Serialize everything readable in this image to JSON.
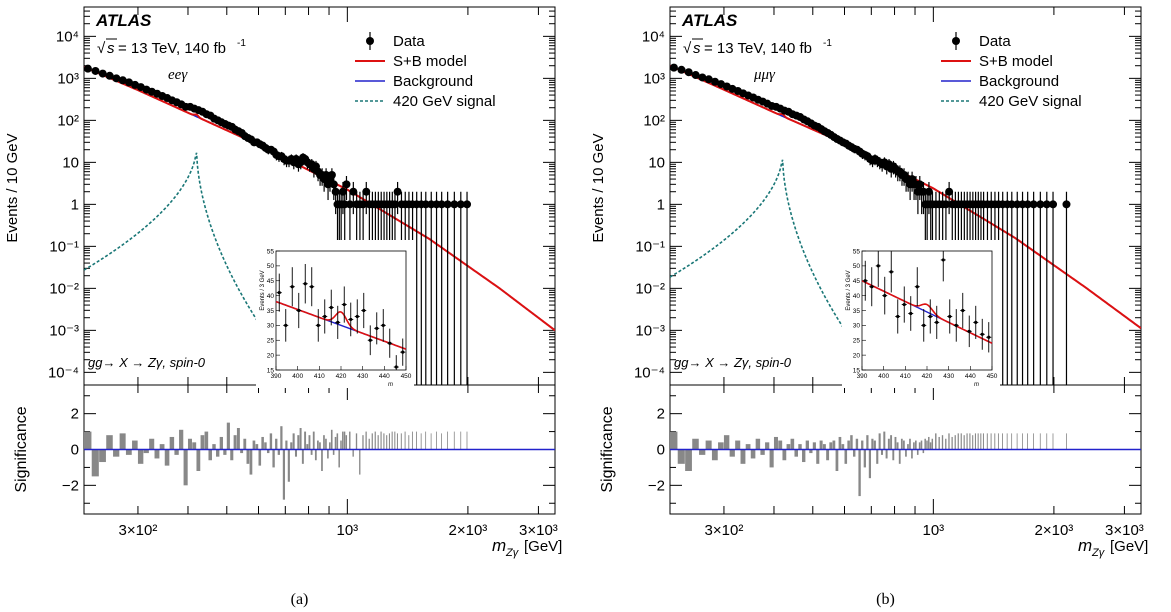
{
  "chart_data": [
    {
      "type": "scatter",
      "panel_label": "(a)",
      "experiment": "ATLAS",
      "energy_text": "= 13 TeV, 140 fb",
      "energy_sup": "-1",
      "sqrt_s": "s",
      "channel": "eeγ",
      "process_label": "gg→ X → Zγ, spin-0",
      "ylabel": "Events / 10 GeV",
      "xlabel": "[GeV]",
      "xlabel_symbol": "m",
      "xlabel_sub": "Zγ",
      "ratio_ylabel": "Significance",
      "xscale": "log",
      "yscale": "log",
      "xlim": [
        220,
        3300
      ],
      "ylim": [
        5e-05,
        50000
      ],
      "ratio_ylim": [
        -3.6,
        3.6
      ],
      "y_ticks": [
        "10⁻⁴",
        "10⁻³",
        "10⁻²",
        "10⁻¹",
        "1",
        "10",
        "10²",
        "10³",
        "10⁴"
      ],
      "ratio_ticks": [
        "2",
        "0",
        "−2"
      ],
      "x_ticks": [
        "3×10²",
        "10³",
        "2×10³",
        "3×10³"
      ],
      "legend": {
        "position": "top-right",
        "entries": [
          "Data",
          "S+B model",
          "Background",
          "420 GeV signal"
        ]
      },
      "colors": {
        "data": "#000000",
        "sb": "#dd1111",
        "bkg": "#2222cc",
        "signal": "#1a7777",
        "sig_bar": "#888888"
      },
      "background_model": {
        "log10_events_at": [
          [
            220,
            3.27
          ],
          [
            300,
            2.72
          ],
          [
            420,
            2.09
          ],
          [
            600,
            1.42
          ],
          [
            1000,
            0.35
          ],
          [
            1600,
            -0.82
          ],
          [
            2400,
            -2.0
          ],
          [
            3300,
            -3.0
          ]
        ]
      },
      "signal": {
        "mass": 420,
        "peak": 22,
        "width_log10_per_log10x": 0.17,
        "reach": 3.5,
        "floor": 0.00019
      },
      "data": {
        "x": [
          225,
          235,
          245,
          255,
          265,
          275,
          285,
          295,
          305,
          315,
          325,
          335,
          345,
          355,
          365,
          375,
          385,
          395,
          405,
          415,
          425,
          435,
          445,
          455,
          465,
          475,
          485,
          495,
          505,
          515,
          525,
          535,
          545,
          555,
          565,
          575,
          585,
          595,
          605,
          615,
          625,
          635,
          645,
          655,
          665,
          675,
          685,
          695,
          705,
          715,
          725,
          735,
          745,
          755,
          765,
          775,
          785,
          795,
          805,
          815,
          825,
          835,
          845,
          855,
          865,
          875,
          885,
          895,
          905,
          915,
          925,
          935,
          945,
          955,
          965,
          975,
          985,
          995,
          1015,
          1035,
          1055,
          1075,
          1095,
          1115,
          1135,
          1155,
          1175,
          1195,
          1215,
          1235,
          1255,
          1275,
          1295,
          1315,
          1335,
          1365,
          1395,
          1425,
          1455,
          1490,
          1530,
          1570,
          1620,
          1670,
          1720,
          1780,
          1850,
          1920,
          1990
        ],
        "y": [
          1700,
          1500,
          1300,
          1150,
          1000,
          900,
          800,
          700,
          620,
          540,
          480,
          430,
          380,
          340,
          300,
          270,
          240,
          210,
          210,
          190,
          175,
          160,
          140,
          130,
          110,
          100,
          90,
          82,
          75,
          70,
          60,
          55,
          50,
          42,
          38,
          35,
          30,
          30,
          27,
          25,
          22,
          20,
          20,
          18,
          15,
          14,
          14,
          12,
          11,
          11,
          12,
          10,
          12,
          9,
          10,
          13,
          12,
          10,
          9,
          9,
          7,
          8,
          6,
          5,
          5,
          4,
          5,
          3,
          4,
          5,
          3,
          2,
          1,
          1,
          1,
          2,
          1,
          3,
          1,
          2,
          1,
          1,
          1,
          2,
          1,
          1,
          1,
          1,
          1,
          1,
          1,
          1,
          1,
          1,
          2,
          1,
          1,
          1,
          1,
          1,
          1,
          1,
          1,
          1,
          1,
          1,
          1,
          1,
          1
        ]
      },
      "significance": [
        1.0,
        -1.5,
        -0.7,
        0.8,
        -0.4,
        0.9,
        -0.3,
        0.5,
        -0.8,
        -0.2,
        0.6,
        -0.5,
        0.3,
        -0.9,
        0.7,
        -0.3,
        1.1,
        -2.0,
        0.6,
        0.4,
        -1.2,
        0.8,
        1.0,
        -0.6,
        0.3,
        -0.4,
        0.7,
        -0.3,
        1.5,
        -0.6,
        0.8,
        1.2,
        -0.2,
        0.6,
        -0.8,
        -1.4,
        0.5,
        0.3,
        -0.9,
        0.7,
        0.4,
        -0.2,
        0.9,
        -1.0,
        0.6,
        -0.3,
        1.3,
        -2.8,
        0.5,
        -1.8,
        0.4,
        0.9,
        -0.4,
        0.8,
        1.2,
        -0.8,
        1.0,
        0.3,
        0.8,
        -0.3,
        1.0,
        -0.6,
        0.5,
        0.4,
        -1.2,
        0.8,
        0.6,
        -0.5,
        0.4,
        1.1,
        -0.3,
        0.7,
        0.9,
        -1.0,
        0.5,
        1.0,
        1.0,
        0.8,
        1.0,
        -0.4,
        0.9,
        -1.4,
        0.8,
        1.0,
        0.6,
        0.9,
        1.0,
        0.8,
        1.0,
        0.9,
        0.8,
        0.9,
        1.0,
        1.0,
        0.9,
        0.9,
        1.0,
        0.8,
        1.0,
        1.0,
        0.9,
        1.0,
        0.9,
        1.0,
        0.9,
        1.0,
        1.0,
        1.0,
        1.0
      ],
      "inset": {
        "ylabel": "Events / 3 GeV",
        "xlabel": "m",
        "xlim": [
          390,
          450
        ],
        "ylim": [
          15,
          55
        ],
        "x_ticks": [
          "390",
          "400",
          "410",
          "420",
          "430",
          "440",
          "450"
        ],
        "y_ticks": [
          "15",
          "20",
          "25",
          "30",
          "35",
          "40",
          "45",
          "50",
          "55"
        ],
        "bkg_line": [
          [
            390,
            38
          ],
          [
            450,
            22
          ]
        ],
        "sb_bump": {
          "mass": 420,
          "height": 4.5,
          "width": 3.5
        },
        "data": {
          "x": [
            391.5,
            394.5,
            397.5,
            400.5,
            403.5,
            406.5,
            409.5,
            412.5,
            415.5,
            418.5,
            421.5,
            424.5,
            427.5,
            430.5,
            433.5,
            436.5,
            439.5,
            442.5,
            445.5,
            448.5
          ],
          "y": [
            41,
            30,
            43,
            35,
            44,
            43,
            30,
            33,
            36,
            31,
            37,
            32,
            33,
            35,
            25,
            29,
            30,
            24,
            16,
            21
          ]
        }
      }
    },
    {
      "type": "scatter",
      "panel_label": "(b)",
      "experiment": "ATLAS",
      "energy_text": "= 13 TeV, 140 fb",
      "energy_sup": "-1",
      "sqrt_s": "s",
      "channel": "μμγ",
      "process_label": "gg→ X → Zγ, spin-0",
      "ylabel": "Events / 10 GeV",
      "xlabel": "[GeV]",
      "xlabel_symbol": "m",
      "xlabel_sub": "Zγ",
      "ratio_ylabel": "Significance",
      "xscale": "log",
      "yscale": "log",
      "xlim": [
        220,
        3300
      ],
      "ylim": [
        5e-05,
        50000
      ],
      "ratio_ylim": [
        -3.6,
        3.6
      ],
      "y_ticks": [
        "10⁻⁴",
        "10⁻³",
        "10⁻²",
        "10⁻¹",
        "1",
        "10",
        "10²",
        "10³",
        "10⁴"
      ],
      "ratio_ticks": [
        "2",
        "0",
        "−2"
      ],
      "x_ticks": [
        "3×10²",
        "10³",
        "2×10³",
        "3×10³"
      ],
      "legend": {
        "position": "top-right",
        "entries": [
          "Data",
          "S+B model",
          "Background",
          "420 GeV signal"
        ]
      },
      "colors": {
        "data": "#000000",
        "sb": "#dd1111",
        "bkg": "#2222cc",
        "signal": "#1a7777",
        "sig_bar": "#888888"
      },
      "background_model": {
        "log10_events_at": [
          [
            220,
            3.3
          ],
          [
            300,
            2.73
          ],
          [
            420,
            2.1
          ],
          [
            600,
            1.45
          ],
          [
            1000,
            0.38
          ],
          [
            1600,
            -0.8
          ],
          [
            2400,
            -1.98
          ],
          [
            3300,
            -2.95
          ]
        ]
      },
      "signal": {
        "mass": 420,
        "peak": 15,
        "width_log10_per_log10x": 0.17,
        "reach": 3.5,
        "floor": 0.00019
      },
      "data": {
        "x": [
          225,
          235,
          245,
          255,
          265,
          275,
          285,
          295,
          305,
          315,
          325,
          335,
          345,
          355,
          365,
          375,
          385,
          395,
          405,
          415,
          425,
          435,
          445,
          455,
          465,
          475,
          485,
          495,
          505,
          515,
          525,
          535,
          545,
          555,
          565,
          575,
          585,
          595,
          605,
          615,
          625,
          635,
          645,
          655,
          665,
          675,
          685,
          695,
          705,
          715,
          725,
          735,
          745,
          755,
          765,
          775,
          785,
          795,
          805,
          815,
          825,
          835,
          845,
          855,
          865,
          875,
          885,
          895,
          905,
          915,
          925,
          935,
          945,
          955,
          965,
          975,
          985,
          995,
          1015,
          1035,
          1055,
          1075,
          1095,
          1115,
          1135,
          1155,
          1175,
          1195,
          1215,
          1235,
          1255,
          1275,
          1295,
          1315,
          1335,
          1365,
          1395,
          1425,
          1455,
          1490,
          1530,
          1570,
          1620,
          1670,
          1720,
          1780,
          1850,
          1920,
          1990,
          2150
        ],
        "y": [
          1800,
          1600,
          1400,
          1200,
          1050,
          950,
          830,
          730,
          640,
          560,
          500,
          440,
          390,
          350,
          310,
          280,
          250,
          220,
          210,
          190,
          170,
          160,
          140,
          130,
          120,
          105,
          95,
          85,
          75,
          70,
          62,
          55,
          50,
          45,
          40,
          36,
          33,
          30,
          28,
          25,
          23,
          21,
          20,
          18,
          16,
          15,
          14,
          12,
          11,
          12,
          11,
          10,
          9,
          10,
          8,
          9,
          7,
          8,
          7,
          6,
          6,
          5,
          5,
          4,
          4,
          3,
          4,
          3,
          3,
          2,
          3,
          2,
          2,
          1,
          1,
          2,
          1,
          1,
          1,
          1,
          1,
          1,
          2,
          1,
          1,
          1,
          1,
          1,
          1,
          1,
          1,
          1,
          1,
          1,
          1,
          1,
          1,
          1,
          1,
          1,
          1,
          1,
          1,
          1,
          1,
          1,
          1,
          1,
          1,
          1
        ]
      },
      "significance": [
        1.0,
        -0.8,
        -1.2,
        0.6,
        -0.3,
        0.5,
        -0.6,
        0.4,
        0.8,
        -0.4,
        0.5,
        -0.8,
        0.3,
        -0.5,
        0.6,
        -0.3,
        0.4,
        -1.0,
        0.7,
        0.5,
        -0.6,
        0.3,
        0.6,
        -0.4,
        0.3,
        -0.7,
        0.5,
        -0.2,
        0.4,
        -0.8,
        0.5,
        0.3,
        -0.6,
        0.4,
        0.5,
        -1.2,
        0.7,
        0.3,
        -0.8,
        0.5,
        0.8,
        -0.4,
        0.6,
        -2.6,
        0.5,
        -1.0,
        0.8,
        -1.6,
        0.6,
        0.5,
        -0.8,
        0.9,
        -0.3,
        1.0,
        -0.5,
        0.6,
        0.8,
        -0.6,
        0.7,
        0.4,
        -0.8,
        0.6,
        0.5,
        -0.4,
        0.3,
        0.6,
        -0.5,
        0.4,
        0.5,
        -0.3,
        0.4,
        0.5,
        -0.2,
        0.6,
        0.5,
        0.7,
        0.4,
        0.6,
        0.9,
        0.7,
        0.8,
        0.6,
        0.9,
        0.7,
        0.8,
        0.9,
        0.9,
        0.8,
        0.9,
        0.9,
        0.8,
        0.9,
        0.9,
        0.9,
        0.9,
        0.9,
        0.9,
        0.9,
        0.9,
        0.9,
        0.9,
        0.9,
        0.9,
        0.9,
        0.9,
        0.9,
        0.9,
        0.9,
        0.9,
        0.9
      ],
      "inset": {
        "ylabel": "Events / 3 GeV",
        "xlabel": "m",
        "xlim": [
          390,
          450
        ],
        "ylim": [
          15,
          55
        ],
        "x_ticks": [
          "390",
          "400",
          "410",
          "420",
          "430",
          "440",
          "450"
        ],
        "y_ticks": [
          "15",
          "20",
          "25",
          "30",
          "35",
          "40",
          "45",
          "50",
          "55"
        ],
        "bkg_line": [
          [
            390,
            45
          ],
          [
            450,
            24
          ]
        ],
        "sb_bump": {
          "mass": 420,
          "height": 2.5,
          "width": 3.5
        },
        "data": {
          "x": [
            391.5,
            394.5,
            397.5,
            400.5,
            403.5,
            406.5,
            409.5,
            412.5,
            415.5,
            418.5,
            421.5,
            424.5,
            427.5,
            430.5,
            433.5,
            436.5,
            439.5,
            442.5,
            445.5,
            448.5
          ],
          "y": [
            45,
            43,
            50,
            40,
            48,
            33,
            37,
            34,
            43,
            30,
            33,
            31,
            52,
            33,
            30,
            35,
            28,
            31,
            27,
            26
          ]
        }
      }
    }
  ]
}
